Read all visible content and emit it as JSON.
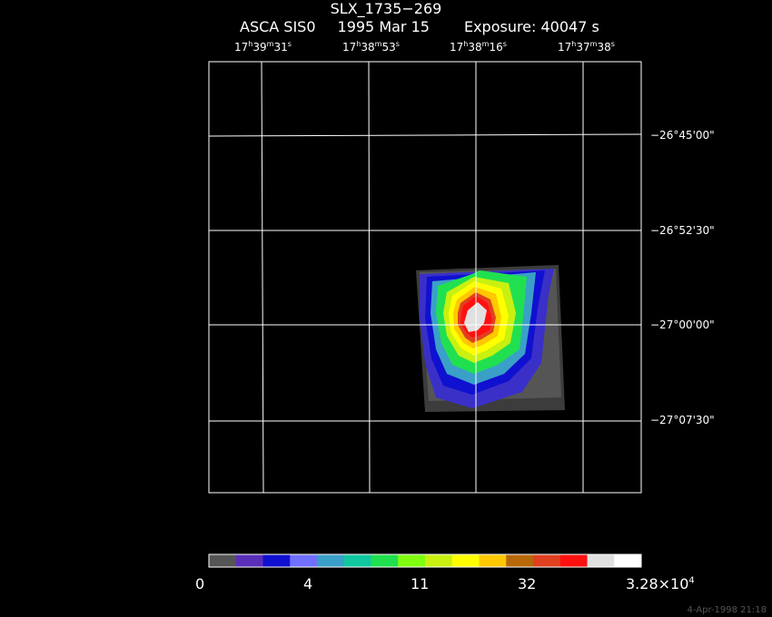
{
  "title": "SLX_1735−269",
  "subtitle": {
    "instrument": "ASCA SIS0",
    "date": "1995 Mar 15",
    "exposure": "Exposure: 40047 s"
  },
  "ra_ticks": [
    {
      "h": "17",
      "m": "39",
      "s": "31"
    },
    {
      "h": "17",
      "m": "38",
      "s": "53"
    },
    {
      "h": "17",
      "m": "38",
      "s": "16"
    },
    {
      "h": "17",
      "m": "37",
      "s": "38"
    }
  ],
  "dec_ticks": [
    "−26°45'00\"",
    "−26°52'30\"",
    "−27°00'00\"",
    "−27°07'30\""
  ],
  "colorbar": {
    "colors": [
      "#555555",
      "#5a2fb8",
      "#1010d0",
      "#7070ff",
      "#3aa0c8",
      "#10c8a0",
      "#20e050",
      "#80ff10",
      "#c8f010",
      "#ffff00",
      "#ffc800",
      "#b86808",
      "#e04020",
      "#ff1010",
      "#e0e0e0",
      "#ffffff"
    ],
    "labels": [
      "0",
      "4",
      "11",
      "32",
      "3.28×10"
    ],
    "label_sup": "4"
  },
  "timestamp": "4-Apr-1998 21:18"
}
